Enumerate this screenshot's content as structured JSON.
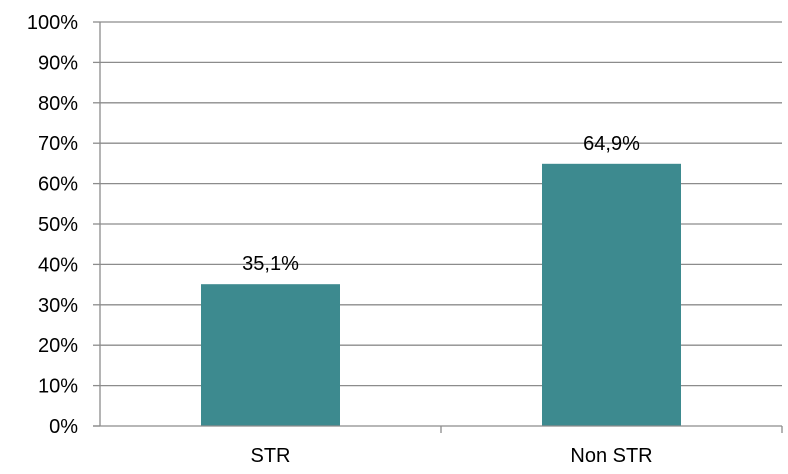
{
  "chart_data": {
    "type": "bar",
    "categories": [
      "STR",
      "Non STR"
    ],
    "values": [
      35.1,
      64.9
    ],
    "data_labels": [
      "35,1%",
      "64,9%"
    ],
    "y_tick_labels": [
      "0%",
      "10%",
      "20%",
      "30%",
      "40%",
      "50%",
      "60%",
      "70%",
      "80%",
      "90%",
      "100%"
    ],
    "ylim": [
      0,
      100
    ],
    "y_unit": "%",
    "grid": true,
    "bar_color": "#3d8a8f",
    "gridline_color": "#8c8c8c",
    "title": "",
    "xlabel": "",
    "ylabel": ""
  }
}
